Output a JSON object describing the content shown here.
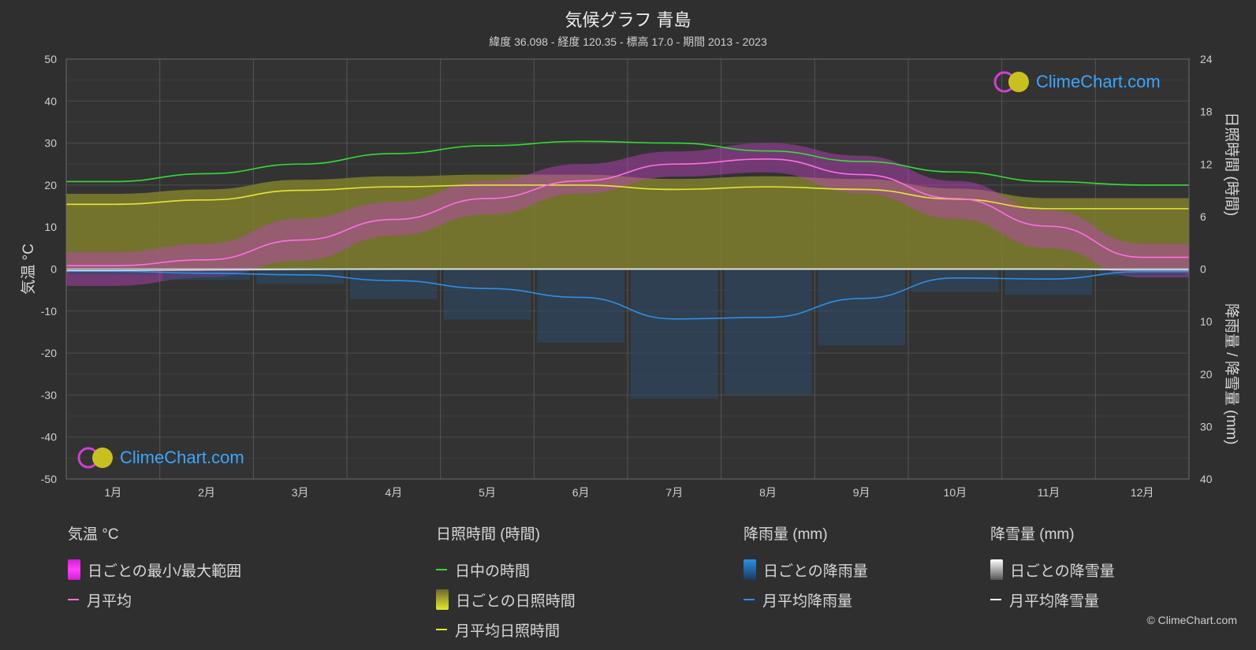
{
  "chart_data": {
    "type": "area",
    "title": "気候グラフ 青島",
    "subtitle": "緯度 36.098 - 経度 120.35 - 標高 17.0 - 期間 2013 - 2023",
    "categories": [
      "1月",
      "2月",
      "3月",
      "4月",
      "5月",
      "6月",
      "7月",
      "8月",
      "9月",
      "10月",
      "11月",
      "12月"
    ],
    "y_left": {
      "label": "気温 °C",
      "min": -50,
      "max": 50,
      "ticks": [
        50,
        40,
        30,
        20,
        10,
        0,
        -10,
        -20,
        -30,
        -40,
        -50
      ]
    },
    "y_right_top": {
      "label": "日照時間 (時間)",
      "min": 0,
      "max": 24,
      "ticks": [
        24,
        18,
        12,
        6,
        0
      ]
    },
    "y_right_bottom": {
      "label": "降雨量 / 降雪量 (mm)",
      "min": 0,
      "max": 40,
      "ticks": [
        0,
        10,
        20,
        30,
        40
      ]
    },
    "series": [
      {
        "name": "日中の時間",
        "unit": "hours",
        "color": "#33dd33",
        "values": [
          10.0,
          10.9,
          12.0,
          13.2,
          14.1,
          14.6,
          14.4,
          13.5,
          12.3,
          11.1,
          10.0,
          9.6
        ]
      },
      {
        "name": "月平均日照時間",
        "unit": "hours",
        "color": "#e6e633",
        "values": [
          7.4,
          7.9,
          9.0,
          9.4,
          9.6,
          9.6,
          9.1,
          9.4,
          9.1,
          8.0,
          6.9,
          6.9
        ]
      },
      {
        "name": "月平均",
        "unit": "°C",
        "color": "#ff6ee6",
        "values": [
          0.8,
          2.2,
          6.9,
          11.8,
          16.8,
          21.0,
          25.0,
          26.2,
          22.5,
          16.8,
          10.2,
          2.8
        ]
      },
      {
        "name": "日ごとの最小/最大範囲 (min)",
        "unit": "°C",
        "values": [
          -4,
          -2,
          2,
          8,
          13,
          18,
          22,
          23,
          18,
          12,
          5,
          -2
        ]
      },
      {
        "name": "日ごとの最小/最大範囲 (max)",
        "unit": "°C",
        "values": [
          4,
          6,
          12,
          16,
          21,
          25,
          28,
          30,
          27,
          21,
          14,
          6
        ]
      },
      {
        "name": "月平均降雨量",
        "unit": "mm",
        "color": "#2f8ee6",
        "values": [
          0.4,
          0.8,
          1.1,
          2.2,
          3.7,
          5.4,
          9.5,
          9.2,
          5.6,
          1.7,
          1.9,
          0.5
        ]
      },
      {
        "name": "月平均降雪量",
        "unit": "mm",
        "color": "#ffffff",
        "values": [
          0.3,
          0.2,
          0.1,
          0,
          0,
          0,
          0,
          0,
          0,
          0,
          0,
          0.2
        ]
      }
    ]
  },
  "legend": {
    "temp": {
      "head": "気温 °C",
      "range": "日ごとの最小/最大範囲",
      "avg": "月平均"
    },
    "sun": {
      "head": "日照時間 (時間)",
      "daylight": "日中の時間",
      "daily": "日ごとの日照時間",
      "avg": "月平均日照時間"
    },
    "rain": {
      "head": "降雨量 (mm)",
      "daily": "日ごとの降雨量",
      "avg": "月平均降雨量"
    },
    "snow": {
      "head": "降雪量 (mm)",
      "daily": "日ごとの降雪量",
      "avg": "月平均降雪量"
    }
  },
  "brand": {
    "name": "ClimeChart.com",
    "copyright": "© ClimeChart.com"
  }
}
